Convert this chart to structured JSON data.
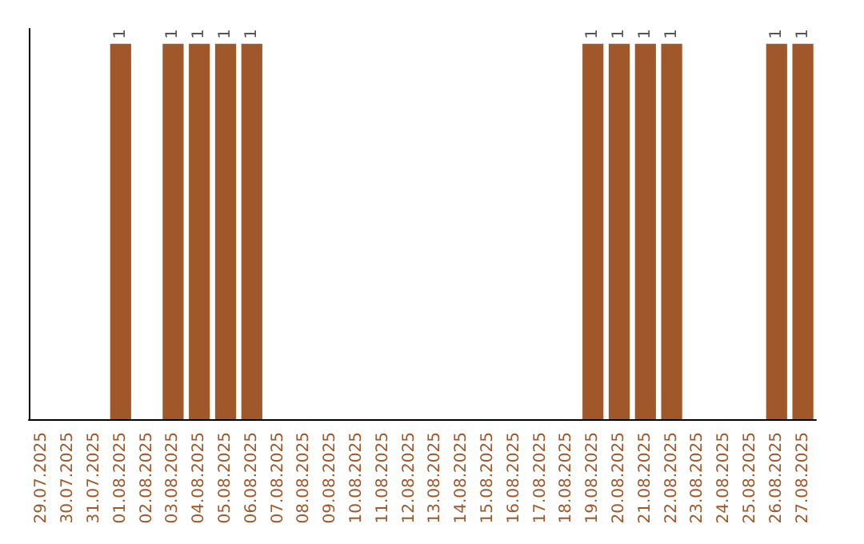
{
  "chart_data": {
    "type": "bar",
    "categories": [
      "29.07.2025",
      "30.07.2025",
      "31.07.2025",
      "01.08.2025",
      "02.08.2025",
      "03.08.2025",
      "04.08.2025",
      "05.08.2025",
      "06.08.2025",
      "07.08.2025",
      "08.08.2025",
      "09.08.2025",
      "10.08.2025",
      "11.08.2025",
      "12.08.2025",
      "13.08.2025",
      "14.08.2025",
      "15.08.2025",
      "16.08.2025",
      "17.08.2025",
      "18.08.2025",
      "19.08.2025",
      "20.08.2025",
      "21.08.2025",
      "22.08.2025",
      "23.08.2025",
      "24.08.2025",
      "25.08.2025",
      "26.08.2025",
      "27.08.2025"
    ],
    "values": [
      0,
      0,
      0,
      1,
      0,
      1,
      1,
      1,
      1,
      0,
      0,
      0,
      0,
      0,
      0,
      0,
      0,
      0,
      0,
      0,
      0,
      1,
      1,
      1,
      1,
      0,
      0,
      0,
      1,
      1
    ],
    "value_labels": [
      null,
      null,
      null,
      "1",
      null,
      "1",
      "1",
      "1",
      "1",
      null,
      null,
      null,
      null,
      null,
      null,
      null,
      null,
      null,
      null,
      null,
      null,
      "1",
      "1",
      "1",
      "1",
      null,
      null,
      null,
      "1",
      "1"
    ],
    "color": "#a0582a"
  }
}
